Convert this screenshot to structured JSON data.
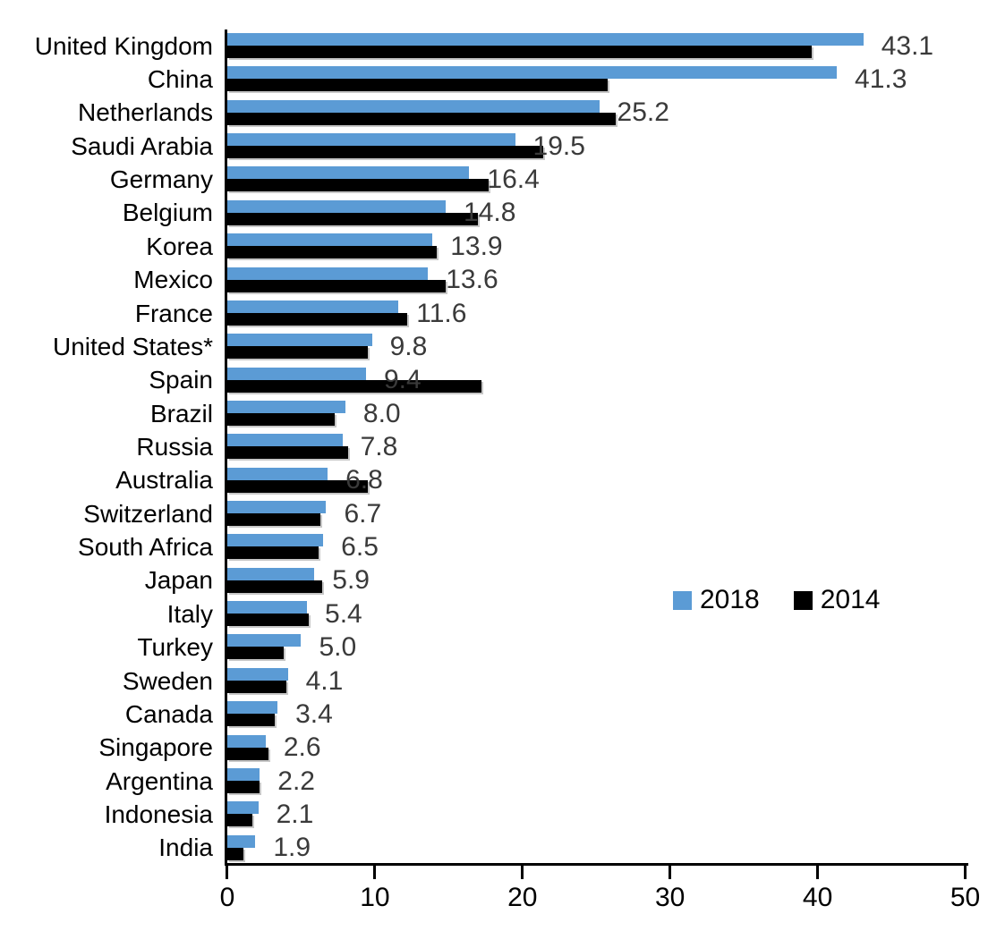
{
  "chart_data": {
    "type": "bar",
    "orientation": "horizontal",
    "title": "",
    "xlabel": "",
    "ylabel": "",
    "xlim": [
      0,
      50
    ],
    "xticks": [
      0,
      10,
      20,
      30,
      40,
      50
    ],
    "grid": false,
    "categories": [
      "United Kingdom",
      "China",
      "Netherlands",
      "Saudi Arabia",
      "Germany",
      "Belgium",
      "Korea",
      "Mexico",
      "France",
      "United States*",
      "Spain",
      "Brazil",
      "Russia",
      "Australia",
      "Switzerland",
      "South Africa",
      "Japan",
      "Italy",
      "Turkey",
      "Sweden",
      "Canada",
      "Singapore",
      "Argentina",
      "Indonesia",
      "India"
    ],
    "series": [
      {
        "name": "2018",
        "color": "#5B9BD5",
        "values": [
          43.1,
          41.3,
          25.2,
          19.5,
          16.4,
          14.8,
          13.9,
          13.6,
          11.6,
          9.8,
          9.4,
          8.0,
          7.8,
          6.8,
          6.7,
          6.5,
          5.9,
          5.4,
          5.0,
          4.1,
          3.4,
          2.6,
          2.2,
          2.1,
          1.9
        ]
      },
      {
        "name": "2014",
        "color": "#000000",
        "values": [
          39.6,
          25.8,
          26.3,
          21.4,
          17.7,
          17.0,
          14.2,
          14.8,
          12.2,
          9.5,
          17.2,
          7.3,
          8.2,
          9.5,
          6.3,
          6.2,
          6.4,
          5.5,
          3.8,
          4.0,
          3.2,
          2.8,
          2.2,
          1.7,
          1.1
        ]
      }
    ],
    "data_labels": [
      "43.1",
      "41.3",
      "25.2",
      "19.5",
      "16.4",
      "14.8",
      "13.9",
      "13.6",
      "11.6",
      "9.8",
      "9.4",
      "8.0",
      "7.8",
      "6.8",
      "6.7",
      "6.5",
      "5.9",
      "5.4",
      "5.0",
      "4.1",
      "3.4",
      "2.6",
      "2.2",
      "2.1",
      "1.9"
    ],
    "data_labels_series": "2018",
    "legend": {
      "position": "middle-right",
      "entries": [
        "2018",
        "2014"
      ]
    }
  },
  "colors": {
    "background": "#ffffff",
    "axis": "#000000",
    "data_label_text": "#3a3a3a",
    "category_label_text": "#000000"
  }
}
